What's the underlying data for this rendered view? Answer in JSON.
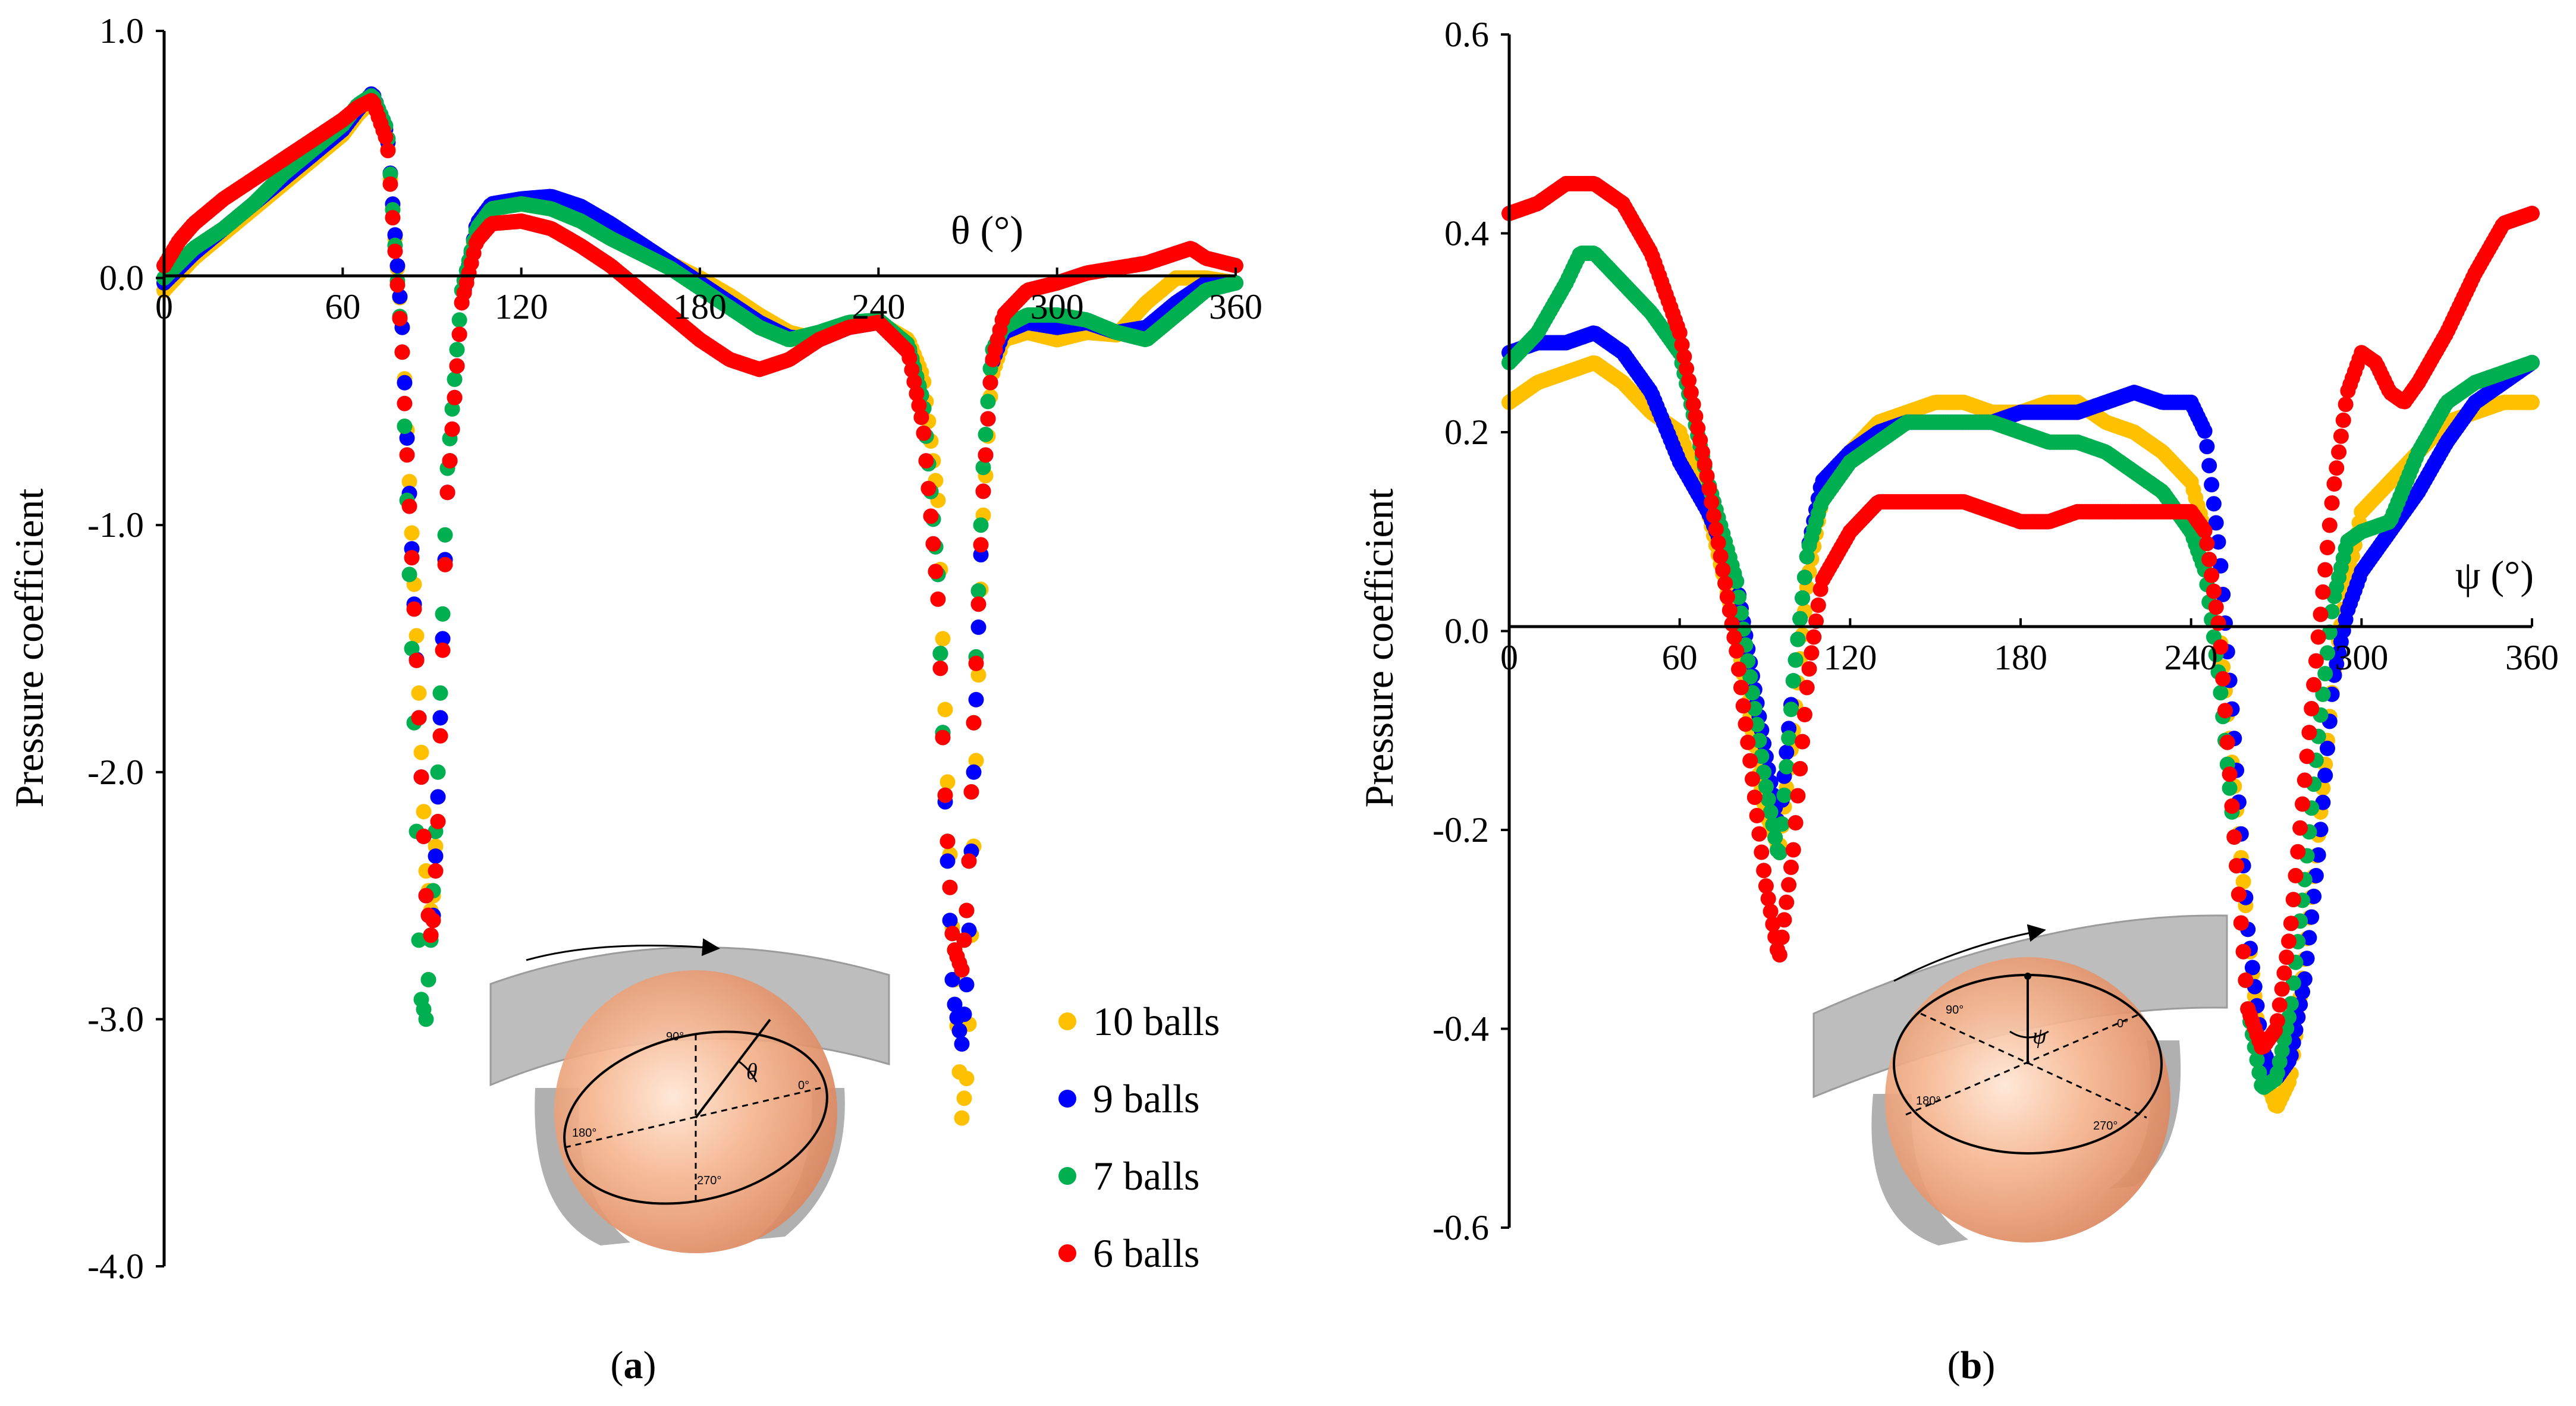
{
  "legend": [
    {
      "label": "10 balls",
      "color": "#ffc000"
    },
    {
      "label": "9 balls",
      "color": "#0000ff"
    },
    {
      "label": "7 balls",
      "color": "#00b050"
    },
    {
      "label": "6 balls",
      "color": "#ff0000"
    }
  ],
  "captions": {
    "a": "a",
    "b": "b"
  },
  "diagrams": {
    "a": {
      "labels": [
        "90°",
        "180°",
        "270°",
        "0°"
      ],
      "symbol": "θ"
    },
    "b": {
      "labels": [
        "90°",
        "180°",
        "270°",
        "0°"
      ],
      "symbol": "ψ"
    }
  },
  "chart_data": [
    {
      "type": "scatter",
      "panel": "a",
      "xlabel": "θ (°)",
      "ylabel": "Pressure coefficient",
      "xlim": [
        0,
        360
      ],
      "ylim": [
        -4.0,
        1.0
      ],
      "xticks": [
        "0",
        "60",
        "120",
        "180",
        "240",
        "300",
        "360"
      ],
      "yticks": [
        "1.0",
        "0.0",
        "-1.0",
        "-2.0",
        "-3.0",
        "-4.0"
      ],
      "series": [
        {
          "name": "10 balls",
          "color": "#ffc000",
          "x": [
            0,
            10,
            20,
            30,
            40,
            50,
            60,
            65,
            70,
            75,
            80,
            85,
            88,
            90,
            92,
            95,
            100,
            105,
            110,
            120,
            130,
            140,
            150,
            160,
            170,
            180,
            190,
            200,
            210,
            220,
            230,
            240,
            250,
            255,
            260,
            262,
            265,
            268,
            270,
            272,
            275,
            278,
            282,
            290,
            300,
            310,
            320,
            330,
            340,
            350,
            360
          ],
          "y": [
            -0.05,
            0.08,
            0.18,
            0.28,
            0.38,
            0.48,
            0.58,
            0.66,
            0.72,
            0.55,
            -0.2,
            -1.5,
            -2.4,
            -2.6,
            -2.1,
            -0.9,
            -0.1,
            0.2,
            0.28,
            0.3,
            0.28,
            0.24,
            0.18,
            0.12,
            0.06,
            0.0,
            -0.07,
            -0.15,
            -0.22,
            -0.25,
            -0.2,
            -0.18,
            -0.25,
            -0.4,
            -0.9,
            -1.6,
            -2.7,
            -3.4,
            -3.2,
            -2.3,
            -1.0,
            -0.4,
            -0.25,
            -0.22,
            -0.25,
            -0.22,
            -0.23,
            -0.1,
            0.0,
            0.0,
            -0.02
          ]
        },
        {
          "name": "9 balls",
          "color": "#0000ff",
          "x": [
            0,
            10,
            20,
            30,
            40,
            50,
            60,
            65,
            70,
            75,
            80,
            85,
            88,
            90,
            92,
            95,
            100,
            105,
            110,
            120,
            130,
            140,
            150,
            160,
            170,
            180,
            190,
            200,
            210,
            220,
            230,
            240,
            250,
            255,
            260,
            262,
            265,
            268,
            270,
            272,
            275,
            278,
            282,
            290,
            300,
            310,
            320,
            330,
            340,
            350,
            360
          ],
          "y": [
            -0.02,
            0.1,
            0.2,
            0.3,
            0.4,
            0.5,
            0.6,
            0.68,
            0.75,
            0.58,
            -0.2,
            -1.6,
            -2.5,
            -2.7,
            -2.1,
            -0.9,
            -0.1,
            0.22,
            0.3,
            0.32,
            0.33,
            0.29,
            0.22,
            0.14,
            0.06,
            -0.02,
            -0.1,
            -0.18,
            -0.24,
            -0.25,
            -0.2,
            -0.18,
            -0.28,
            -0.5,
            -1.2,
            -2.0,
            -2.9,
            -3.1,
            -2.8,
            -2.0,
            -0.9,
            -0.35,
            -0.22,
            -0.18,
            -0.2,
            -0.18,
            -0.22,
            -0.2,
            -0.1,
            -0.02,
            -0.02
          ]
        },
        {
          "name": "7 balls",
          "color": "#00b050",
          "x": [
            0,
            10,
            20,
            30,
            40,
            50,
            60,
            65,
            70,
            75,
            80,
            84,
            86,
            88,
            90,
            92,
            95,
            100,
            105,
            110,
            120,
            130,
            140,
            150,
            160,
            170,
            180,
            190,
            200,
            210,
            220,
            230,
            240,
            250,
            255,
            260,
            262,
            265,
            268,
            270,
            272,
            275,
            278,
            282,
            290,
            300,
            310,
            320,
            330,
            340,
            350,
            360
          ],
          "y": [
            0.0,
            0.12,
            0.2,
            0.3,
            0.42,
            0.52,
            0.62,
            0.7,
            0.74,
            0.6,
            -0.3,
            -1.8,
            -2.9,
            -3.0,
            -2.6,
            -2.0,
            -0.8,
            -0.05,
            0.2,
            0.28,
            0.3,
            0.28,
            0.23,
            0.16,
            0.1,
            0.04,
            -0.04,
            -0.12,
            -0.2,
            -0.25,
            -0.22,
            -0.18,
            -0.17,
            -0.27,
            -0.5,
            -1.2,
            -2.0,
            -2.7,
            -2.8,
            -2.5,
            -1.8,
            -0.8,
            -0.3,
            -0.2,
            -0.15,
            -0.15,
            -0.17,
            -0.22,
            -0.25,
            -0.15,
            -0.05,
            -0.02
          ]
        },
        {
          "name": "6 balls",
          "color": "#ff0000",
          "x": [
            0,
            5,
            10,
            20,
            30,
            40,
            50,
            60,
            65,
            70,
            75,
            80,
            85,
            88,
            90,
            92,
            95,
            100,
            105,
            110,
            120,
            130,
            140,
            150,
            160,
            170,
            180,
            190,
            200,
            210,
            220,
            230,
            240,
            250,
            255,
            260,
            262,
            265,
            268,
            270,
            272,
            275,
            278,
            282,
            290,
            300,
            310,
            320,
            330,
            340,
            345,
            350,
            360
          ],
          "y": [
            0.05,
            0.15,
            0.22,
            0.32,
            0.4,
            0.48,
            0.56,
            0.64,
            0.69,
            0.72,
            0.55,
            -0.3,
            -1.6,
            -2.5,
            -2.7,
            -2.2,
            -0.9,
            -0.1,
            0.15,
            0.22,
            0.23,
            0.2,
            0.13,
            0.05,
            -0.05,
            -0.15,
            -0.25,
            -0.33,
            -0.37,
            -0.33,
            -0.25,
            -0.2,
            -0.18,
            -0.3,
            -0.6,
            -1.3,
            -2.0,
            -2.7,
            -2.8,
            -2.5,
            -1.8,
            -0.9,
            -0.35,
            -0.15,
            -0.05,
            -0.02,
            0.02,
            0.04,
            0.06,
            0.1,
            0.12,
            0.08,
            0.05
          ]
        }
      ]
    },
    {
      "type": "scatter",
      "panel": "b",
      "xlabel": "ψ (°)",
      "ylabel": "Pressure coefficient",
      "xlim": [
        0,
        360
      ],
      "ylim": [
        -0.6,
        0.6
      ],
      "xticks": [
        "0",
        "60",
        "120",
        "180",
        "240",
        "300",
        "360"
      ],
      "yticks": [
        "0.6",
        "0.4",
        "0.2",
        "0.0",
        "-0.2",
        "-0.4",
        "-0.6"
      ],
      "series": [
        {
          "name": "10 balls",
          "color": "#ffc000",
          "x": [
            0,
            10,
            20,
            30,
            40,
            50,
            60,
            70,
            80,
            90,
            95,
            100,
            105,
            110,
            120,
            130,
            140,
            150,
            160,
            170,
            180,
            190,
            200,
            210,
            220,
            230,
            240,
            245,
            250,
            255,
            260,
            265,
            270,
            275,
            280,
            285,
            290,
            295,
            300,
            310,
            320,
            330,
            340,
            350,
            360
          ],
          "y": [
            0.23,
            0.25,
            0.26,
            0.27,
            0.25,
            0.22,
            0.2,
            0.12,
            0.0,
            -0.18,
            -0.22,
            -0.1,
            0.05,
            0.13,
            0.18,
            0.21,
            0.22,
            0.23,
            0.23,
            0.22,
            0.22,
            0.23,
            0.23,
            0.21,
            0.2,
            0.18,
            0.15,
            0.1,
            0.0,
            -0.15,
            -0.3,
            -0.44,
            -0.48,
            -0.45,
            -0.33,
            -0.2,
            -0.05,
            0.05,
            0.12,
            0.15,
            0.18,
            0.21,
            0.22,
            0.23,
            0.23
          ]
        },
        {
          "name": "9 balls",
          "color": "#0000ff",
          "x": [
            0,
            10,
            20,
            30,
            40,
            50,
            60,
            70,
            80,
            90,
            95,
            100,
            105,
            110,
            120,
            130,
            140,
            150,
            160,
            170,
            180,
            190,
            200,
            210,
            220,
            230,
            240,
            245,
            250,
            255,
            260,
            265,
            270,
            275,
            280,
            285,
            290,
            295,
            300,
            310,
            320,
            330,
            340,
            350,
            360
          ],
          "y": [
            0.28,
            0.29,
            0.29,
            0.3,
            0.28,
            0.24,
            0.17,
            0.12,
            0.05,
            -0.12,
            -0.2,
            -0.05,
            0.08,
            0.15,
            0.18,
            0.2,
            0.21,
            0.21,
            0.21,
            0.21,
            0.22,
            0.22,
            0.22,
            0.23,
            0.24,
            0.23,
            0.23,
            0.2,
            0.08,
            -0.1,
            -0.3,
            -0.42,
            -0.45,
            -0.43,
            -0.35,
            -0.22,
            -0.05,
            0.02,
            0.06,
            0.1,
            0.14,
            0.19,
            0.23,
            0.25,
            0.27
          ]
        },
        {
          "name": "7 balls",
          "color": "#00b050",
          "x": [
            0,
            10,
            20,
            25,
            30,
            40,
            50,
            60,
            70,
            80,
            90,
            95,
            100,
            105,
            110,
            120,
            130,
            140,
            150,
            160,
            170,
            180,
            190,
            200,
            210,
            220,
            230,
            240,
            245,
            250,
            255,
            260,
            265,
            270,
            275,
            280,
            285,
            290,
            295,
            300,
            310,
            320,
            330,
            340,
            350,
            360
          ],
          "y": [
            0.27,
            0.3,
            0.35,
            0.38,
            0.38,
            0.35,
            0.32,
            0.28,
            0.15,
            0.05,
            -0.15,
            -0.23,
            -0.05,
            0.08,
            0.13,
            0.17,
            0.19,
            0.21,
            0.21,
            0.21,
            0.21,
            0.2,
            0.19,
            0.19,
            0.18,
            0.16,
            0.14,
            0.1,
            0.06,
            -0.05,
            -0.2,
            -0.38,
            -0.46,
            -0.45,
            -0.38,
            -0.25,
            -0.1,
            0.03,
            0.09,
            0.1,
            0.11,
            0.18,
            0.23,
            0.25,
            0.26,
            0.27
          ]
        },
        {
          "name": "6 balls",
          "color": "#ff0000",
          "x": [
            0,
            10,
            20,
            30,
            40,
            50,
            60,
            70,
            80,
            90,
            95,
            100,
            105,
            110,
            120,
            130,
            140,
            150,
            160,
            170,
            180,
            190,
            200,
            210,
            220,
            230,
            240,
            245,
            250,
            255,
            260,
            265,
            270,
            275,
            280,
            285,
            290,
            295,
            300,
            305,
            310,
            315,
            320,
            330,
            340,
            350,
            360
          ],
          "y": [
            0.42,
            0.43,
            0.45,
            0.45,
            0.43,
            0.38,
            0.3,
            0.15,
            -0.02,
            -0.25,
            -0.33,
            -0.22,
            -0.05,
            0.05,
            0.1,
            0.13,
            0.13,
            0.13,
            0.13,
            0.12,
            0.11,
            0.11,
            0.12,
            0.12,
            0.12,
            0.12,
            0.12,
            0.1,
            0.0,
            -0.2,
            -0.38,
            -0.42,
            -0.4,
            -0.3,
            -0.15,
            0.0,
            0.14,
            0.24,
            0.28,
            0.27,
            0.24,
            0.23,
            0.25,
            0.3,
            0.36,
            0.41,
            0.42
          ]
        }
      ]
    }
  ]
}
